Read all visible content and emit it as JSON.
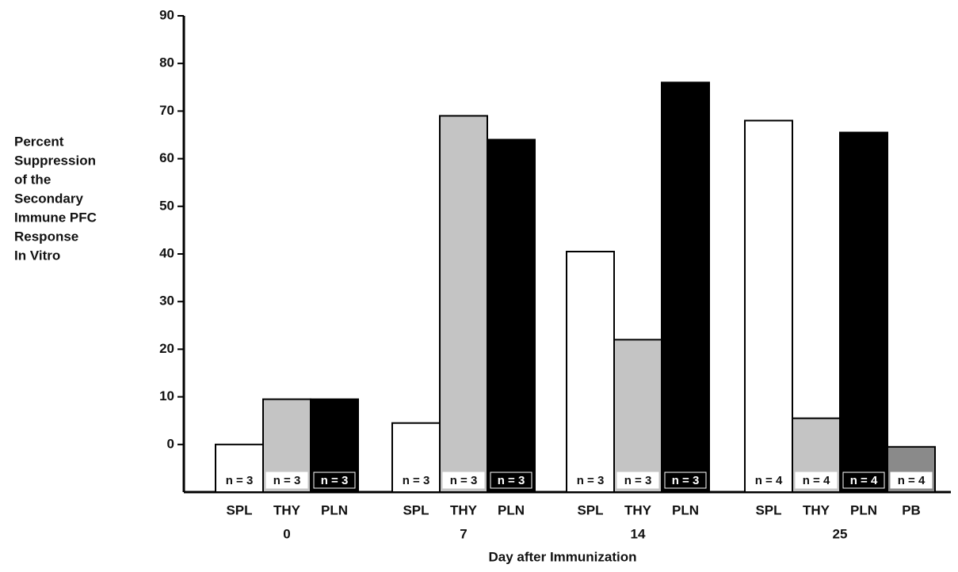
{
  "chart_data": {
    "type": "grouped_bar",
    "y_label": [
      "Percent",
      "Suppression",
      "of the",
      "Secondary",
      "Immune PFC",
      "Response",
      "In Vitro"
    ],
    "x_label": "Day after Immunization",
    "ylim": [
      -10,
      90
    ],
    "yticks": [
      0,
      10,
      20,
      30,
      40,
      50,
      60,
      70,
      80,
      90
    ],
    "groups": [
      {
        "label": "0",
        "categories": [
          "SPL",
          "THY",
          "PLN"
        ],
        "values": [
          0,
          9.5,
          9.5
        ],
        "n_labels": [
          "n = 3",
          "n = 3",
          "n = 3"
        ],
        "colors": [
          "#ffffff",
          "#c4c4c4",
          "#000000"
        ]
      },
      {
        "label": "7",
        "categories": [
          "SPL",
          "THY",
          "PLN"
        ],
        "values": [
          4.5,
          69,
          64
        ],
        "n_labels": [
          "n = 3",
          "n = 3",
          "n = 3"
        ],
        "colors": [
          "#ffffff",
          "#c4c4c4",
          "#000000"
        ]
      },
      {
        "label": "14",
        "categories": [
          "SPL",
          "THY",
          "PLN"
        ],
        "values": [
          40.5,
          22,
          76
        ],
        "n_labels": [
          "n = 3",
          "n = 3",
          "n = 3"
        ],
        "colors": [
          "#ffffff",
          "#c4c4c4",
          "#000000"
        ]
      },
      {
        "label": "25",
        "categories": [
          "SPL",
          "THY",
          "PLN",
          "PB"
        ],
        "values": [
          68,
          5.5,
          65.5,
          -0.5
        ],
        "n_labels": [
          "n = 4",
          "n = 4",
          "n = 4",
          "n = 4"
        ],
        "colors": [
          "#ffffff",
          "#c4c4c4",
          "#000000",
          "#8a8a8a"
        ]
      }
    ]
  }
}
